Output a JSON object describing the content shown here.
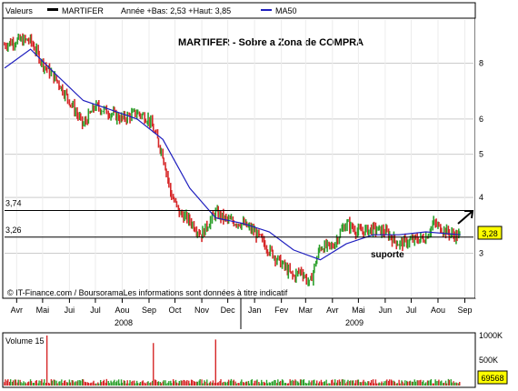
{
  "legend": {
    "valeurs_label": "Valeurs",
    "ticker": "MARTIFER",
    "stats": "Année +Bas: 2,53 +Haut: 3,85",
    "ma_label": "MA50"
  },
  "annotations": {
    "title": "MARTIFER - Sobre a Zona de COMPRA",
    "support_label": "suporte",
    "level_374": "3,74",
    "level_326": "3,26",
    "source": "© IT-Finance.com / BoursoramaLes informations sont données à titre indicatif"
  },
  "price_panel": {
    "right_ticks": [
      "8",
      "6",
      "5",
      "4",
      "3"
    ],
    "current_value": "3,28",
    "x_months": [
      "Avr",
      "Mai",
      "Jui",
      "Jul",
      "Aou",
      "Sep",
      "Oct",
      "Nov",
      "Dec",
      "Jan",
      "Fev",
      "Mar",
      "Avr",
      "Mai",
      "Jun",
      "Jul",
      "Aou",
      "Sep"
    ],
    "years": [
      "2008",
      "2009"
    ]
  },
  "volume_panel": {
    "label": "Volume 15",
    "ticks": [
      "1000K",
      "500K"
    ],
    "current_value": "69568"
  },
  "colors": {
    "up": "#2ca02c",
    "down": "#d62728",
    "ma": "#1f1fbf",
    "grid": "#cccccc"
  },
  "chart_data": {
    "type": "line",
    "title": "MARTIFER - Sobre a Zona de COMPRA",
    "x_range": [
      "2008-04",
      "2009-09"
    ],
    "y_scale": "log",
    "y_ticks": [
      3,
      4,
      5,
      6,
      8
    ],
    "ylim": [
      2.4,
      10
    ],
    "series": [
      {
        "name": "MARTIFER",
        "x": [
          "2008-04-01",
          "2008-04-15",
          "2008-05-01",
          "2008-05-15",
          "2008-06-01",
          "2008-06-15",
          "2008-07-01",
          "2008-07-15",
          "2008-08-01",
          "2008-08-15",
          "2008-09-01",
          "2008-09-15",
          "2008-10-01",
          "2008-10-10",
          "2008-10-20",
          "2008-11-01",
          "2008-11-15",
          "2008-12-01",
          "2008-12-15",
          "2009-01-01",
          "2009-01-15",
          "2009-02-01",
          "2009-02-15",
          "2009-03-01",
          "2009-03-10",
          "2009-03-20",
          "2009-04-01",
          "2009-04-15",
          "2009-05-01",
          "2009-05-15",
          "2009-06-01",
          "2009-06-15",
          "2009-07-01",
          "2009-07-15",
          "2009-08-01",
          "2009-08-10",
          "2009-08-20",
          "2009-09-01",
          "2009-09-10"
        ],
        "values": [
          8.8,
          9.0,
          9.0,
          8.0,
          7.3,
          6.6,
          5.8,
          6.4,
          6.2,
          6.0,
          6.2,
          6.0,
          5.0,
          4.1,
          3.7,
          3.55,
          3.3,
          3.7,
          3.55,
          3.5,
          3.35,
          3.05,
          2.85,
          2.65,
          2.75,
          2.55,
          3.1,
          3.1,
          3.5,
          3.35,
          3.4,
          3.35,
          3.15,
          3.2,
          3.25,
          3.5,
          3.4,
          3.3,
          3.28
        ]
      },
      {
        "name": "MA50",
        "x": [
          "2008-04-01",
          "2008-05-01",
          "2008-06-01",
          "2008-07-01",
          "2008-08-01",
          "2008-09-01",
          "2008-10-01",
          "2008-11-01",
          "2008-12-01",
          "2009-01-01",
          "2009-02-01",
          "2009-03-01",
          "2009-04-01",
          "2009-05-01",
          "2009-06-01",
          "2009-07-01",
          "2009-08-01",
          "2009-09-10"
        ],
        "values": [
          7.8,
          8.6,
          7.5,
          6.6,
          6.3,
          6.0,
          5.4,
          4.2,
          3.6,
          3.5,
          3.35,
          3.05,
          2.9,
          3.15,
          3.3,
          3.3,
          3.35,
          3.3
        ]
      }
    ],
    "reference_lines": [
      {
        "label": "3,74",
        "value": 3.74
      },
      {
        "label": "3,26",
        "value": 3.26
      }
    ],
    "volume": {
      "label": "Volume 15",
      "ticks": [
        "1000K",
        "500K"
      ],
      "last_value": 69568,
      "spikes": [
        {
          "date": "2008-05-20",
          "value": 1000000
        },
        {
          "date": "2008-09-20",
          "value": 850000
        },
        {
          "date": "2008-12-01",
          "value": 920000
        }
      ]
    }
  }
}
